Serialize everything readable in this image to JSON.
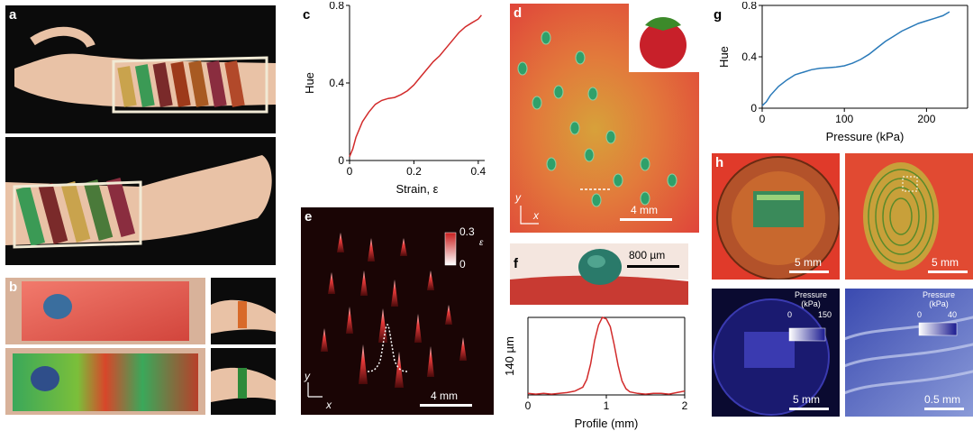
{
  "panels": {
    "a": "a",
    "b": "b",
    "c": "c",
    "d": "d",
    "e": "e",
    "f": "f",
    "g": "g",
    "h": "h"
  },
  "chart_data": [
    {
      "type": "line",
      "panel": "c",
      "xlabel": "Strain, ε",
      "ylabel": "Hue",
      "xlim": [
        0,
        0.42
      ],
      "ylim": [
        0,
        0.8
      ],
      "xticks": [
        "0",
        "0.2",
        "0.4"
      ],
      "yticks": [
        "0",
        "0.4",
        "0.8"
      ],
      "color": "#d22b2b",
      "x": [
        0,
        0.01,
        0.02,
        0.04,
        0.06,
        0.08,
        0.1,
        0.12,
        0.14,
        0.16,
        0.18,
        0.2,
        0.22,
        0.24,
        0.26,
        0.28,
        0.3,
        0.32,
        0.34,
        0.36,
        0.38,
        0.4,
        0.41
      ],
      "y": [
        0.02,
        0.06,
        0.12,
        0.2,
        0.25,
        0.29,
        0.31,
        0.32,
        0.325,
        0.34,
        0.36,
        0.39,
        0.43,
        0.47,
        0.51,
        0.54,
        0.58,
        0.62,
        0.66,
        0.69,
        0.71,
        0.73,
        0.75
      ]
    },
    {
      "type": "line",
      "panel": "g",
      "xlabel": "Pressure (kPa)",
      "ylabel": "Hue",
      "xlim": [
        0,
        250
      ],
      "ylim": [
        0,
        0.8
      ],
      "xticks": [
        "0",
        "100",
        "200"
      ],
      "yticks": [
        "0",
        "0.4",
        "0.8"
      ],
      "color": "#2a7ab9",
      "x": [
        0,
        5,
        10,
        20,
        30,
        40,
        50,
        60,
        70,
        80,
        90,
        100,
        110,
        120,
        130,
        140,
        150,
        160,
        170,
        180,
        190,
        200,
        210,
        220,
        228
      ],
      "y": [
        0.02,
        0.05,
        0.1,
        0.17,
        0.22,
        0.26,
        0.28,
        0.3,
        0.31,
        0.315,
        0.32,
        0.33,
        0.35,
        0.38,
        0.42,
        0.47,
        0.52,
        0.56,
        0.6,
        0.63,
        0.66,
        0.68,
        0.7,
        0.72,
        0.75
      ]
    },
    {
      "type": "line",
      "panel": "f-profile",
      "xlabel": "Profile (mm)",
      "ylabel": "140 µm",
      "xlim": [
        0,
        2
      ],
      "xticks": [
        "0",
        "1",
        "2"
      ],
      "color": "#d22b2b",
      "x": [
        0,
        0.1,
        0.2,
        0.3,
        0.4,
        0.5,
        0.6,
        0.7,
        0.75,
        0.8,
        0.85,
        0.9,
        0.95,
        1.0,
        1.05,
        1.1,
        1.15,
        1.2,
        1.25,
        1.3,
        1.4,
        1.5,
        1.6,
        1.7,
        1.8,
        1.9,
        2.0
      ],
      "y": [
        0.02,
        0.01,
        0.02,
        0.01,
        0.02,
        0.03,
        0.05,
        0.1,
        0.2,
        0.4,
        0.7,
        0.9,
        1.0,
        0.98,
        0.88,
        0.65,
        0.38,
        0.18,
        0.08,
        0.04,
        0.02,
        0.01,
        0.02,
        0.02,
        0.01,
        0.03,
        0.05
      ]
    }
  ],
  "e_colorbar": {
    "max": "0.3",
    "min": "0",
    "label": "ε"
  },
  "scalebars": {
    "d": "4 mm",
    "e": "4 mm",
    "f": "800 µm",
    "h1": "5 mm",
    "h2": "5 mm",
    "h3": "5 mm",
    "h4": "0.5 mm"
  },
  "h_colorbars": {
    "left": {
      "title": "Pressure\n(kPa)",
      "min": "0",
      "max": "150"
    },
    "right": {
      "title": "Pressure\n(kPa)",
      "min": "0",
      "max": "40"
    }
  },
  "axes_xy": {
    "y": "y",
    "x": "x"
  }
}
